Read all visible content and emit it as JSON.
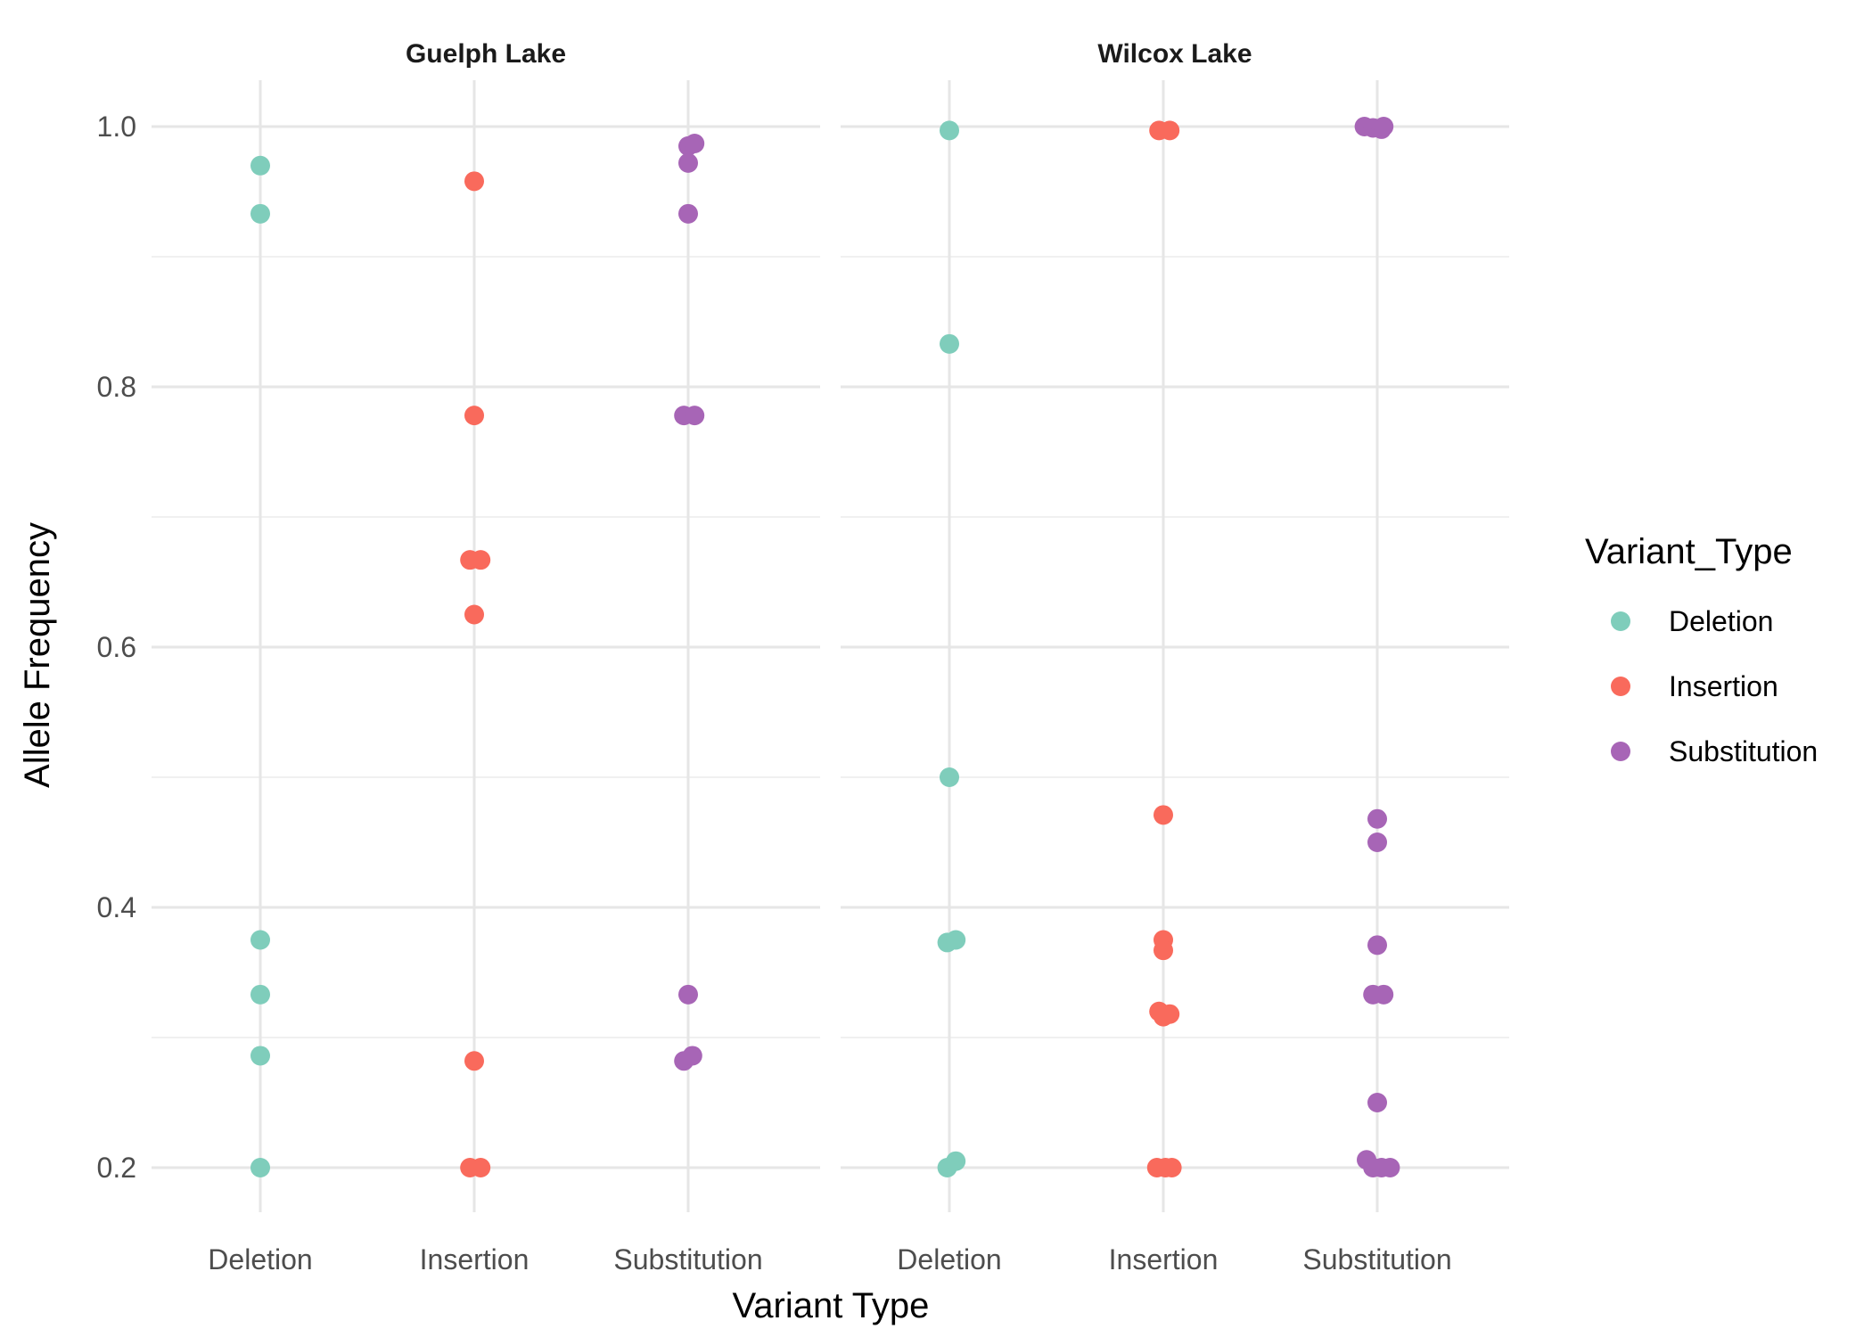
{
  "chart_data": {
    "type": "scatter",
    "xlabel": "Variant Type",
    "ylabel": "Allele Frequency",
    "categories": [
      "Deletion",
      "Insertion",
      "Substitution"
    ],
    "y_ticks": [
      "0.2",
      "0.4",
      "0.6",
      "0.8",
      "1.0"
    ],
    "ylim": [
      0.16,
      1.03
    ],
    "grid": true,
    "legend": {
      "title": "Variant_Type",
      "placement": "right",
      "entries": [
        "Deletion",
        "Insertion",
        "Substitution"
      ]
    },
    "colors": {
      "Deletion": "#7fcdbb",
      "Insertion": "#f96a5c",
      "Substitution": "#a765b6"
    },
    "panels": [
      {
        "title": "Guelph Lake",
        "series": [
          {
            "name": "Deletion",
            "points": [
              {
                "x": 0,
                "y": 0.97
              },
              {
                "x": 0,
                "y": 0.933
              },
              {
                "x": 0,
                "y": 0.375
              },
              {
                "x": 0,
                "y": 0.333
              },
              {
                "x": 0,
                "y": 0.286
              },
              {
                "x": 0,
                "y": 0.2
              }
            ]
          },
          {
            "name": "Insertion",
            "points": [
              {
                "x": 0,
                "y": 0.958
              },
              {
                "x": 0,
                "y": 0.778
              },
              {
                "x": -0.02,
                "y": 0.667
              },
              {
                "x": 0.03,
                "y": 0.667
              },
              {
                "x": 0,
                "y": 0.625
              },
              {
                "x": 0,
                "y": 0.282
              },
              {
                "x": -0.02,
                "y": 0.2
              },
              {
                "x": 0.03,
                "y": 0.2
              }
            ]
          },
          {
            "name": "Substitution",
            "points": [
              {
                "x": 0,
                "y": 0.985
              },
              {
                "x": 0.03,
                "y": 0.987
              },
              {
                "x": 0,
                "y": 0.972
              },
              {
                "x": 0,
                "y": 0.933
              },
              {
                "x": -0.02,
                "y": 0.778
              },
              {
                "x": 0.03,
                "y": 0.778
              },
              {
                "x": 0,
                "y": 0.333
              },
              {
                "x": -0.02,
                "y": 0.282
              },
              {
                "x": 0.02,
                "y": 0.286
              }
            ]
          }
        ]
      },
      {
        "title": "Wilcox Lake",
        "series": [
          {
            "name": "Deletion",
            "points": [
              {
                "x": 0,
                "y": 0.997
              },
              {
                "x": 0,
                "y": 0.833
              },
              {
                "x": 0,
                "y": 0.5
              },
              {
                "x": -0.01,
                "y": 0.373
              },
              {
                "x": 0.03,
                "y": 0.375
              },
              {
                "x": -0.01,
                "y": 0.2
              },
              {
                "x": 0.03,
                "y": 0.205
              }
            ]
          },
          {
            "name": "Insertion",
            "points": [
              {
                "x": -0.02,
                "y": 0.997
              },
              {
                "x": 0.03,
                "y": 0.997
              },
              {
                "x": 0,
                "y": 0.471
              },
              {
                "x": 0,
                "y": 0.375
              },
              {
                "x": 0,
                "y": 0.367
              },
              {
                "x": -0.02,
                "y": 0.32
              },
              {
                "x": 0.03,
                "y": 0.318
              },
              {
                "x": 0,
                "y": 0.316
              },
              {
                "x": -0.03,
                "y": 0.2
              },
              {
                "x": 0.01,
                "y": 0.2
              },
              {
                "x": 0.04,
                "y": 0.2
              }
            ]
          },
          {
            "name": "Substitution",
            "points": [
              {
                "x": -0.06,
                "y": 1.0
              },
              {
                "x": -0.02,
                "y": 0.999
              },
              {
                "x": 0.02,
                "y": 0.998
              },
              {
                "x": 0.03,
                "y": 1.0
              },
              {
                "x": 0,
                "y": 0.468
              },
              {
                "x": 0,
                "y": 0.45
              },
              {
                "x": 0,
                "y": 0.371
              },
              {
                "x": -0.02,
                "y": 0.333
              },
              {
                "x": 0.03,
                "y": 0.333
              },
              {
                "x": 0,
                "y": 0.25
              },
              {
                "x": -0.05,
                "y": 0.206
              },
              {
                "x": -0.02,
                "y": 0.2
              },
              {
                "x": 0.02,
                "y": 0.2
              },
              {
                "x": 0.06,
                "y": 0.2
              }
            ]
          }
        ]
      }
    ]
  }
}
